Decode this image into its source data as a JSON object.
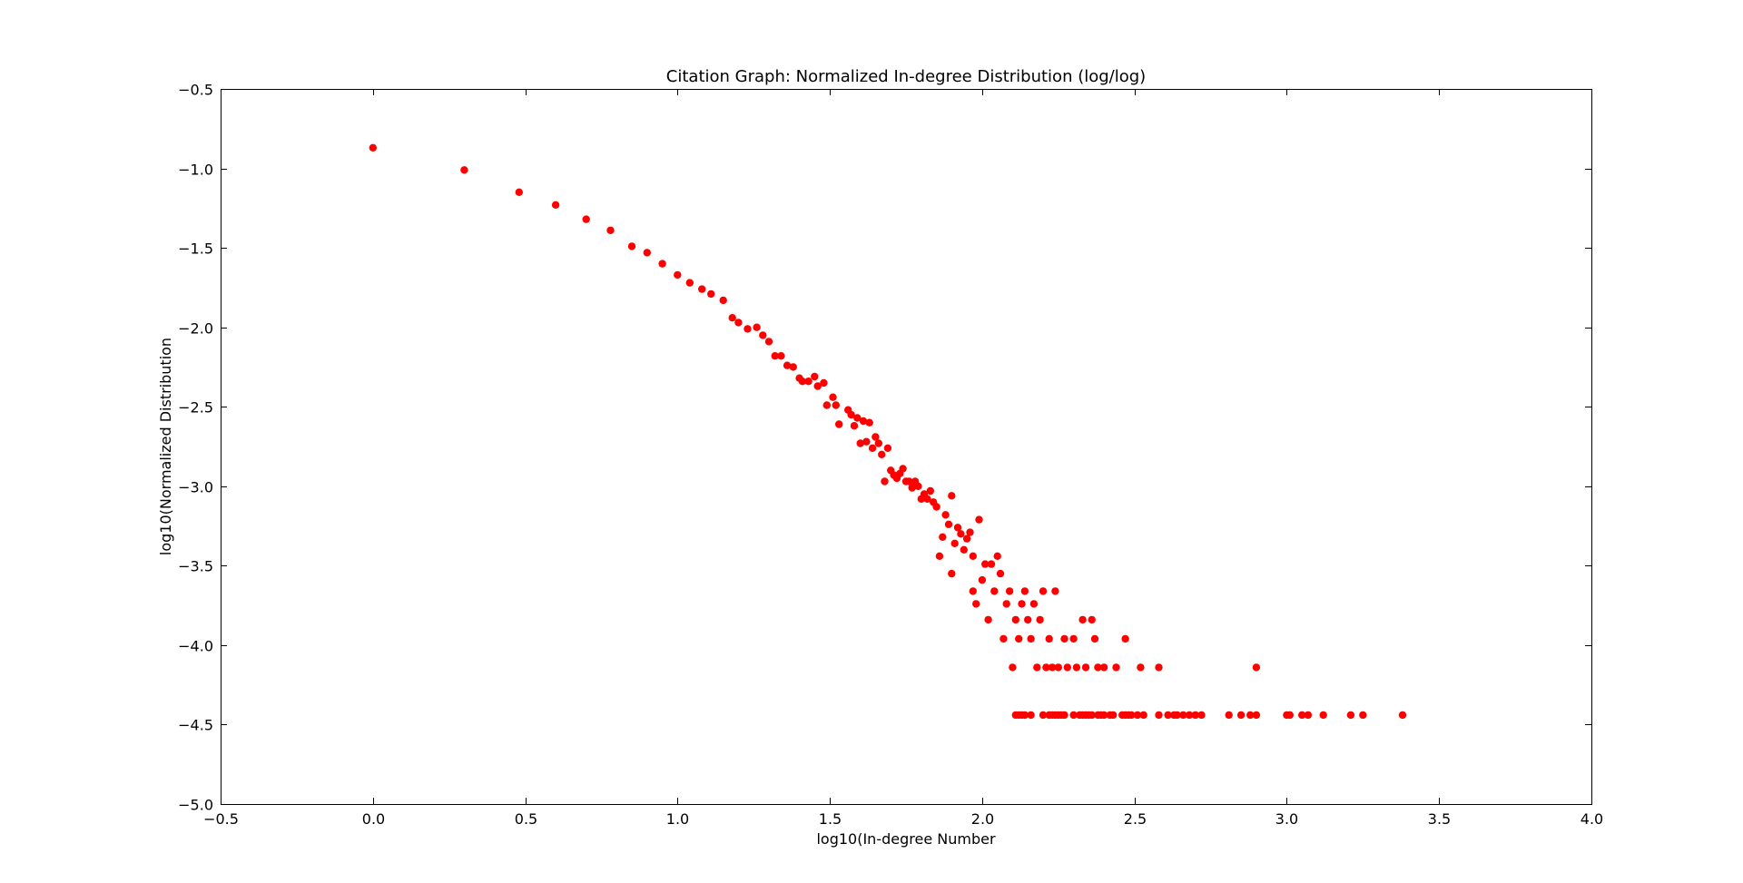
{
  "chart_data": {
    "type": "scatter",
    "title": "Citation Graph: Normalized In-degree Distribution (log/log)",
    "xlabel": "log10(In-degree Number",
    "ylabel": "log10(Normalized Distribution",
    "xlim": [
      -0.5,
      4.0
    ],
    "ylim": [
      -5.0,
      -0.5
    ],
    "xticks": [
      -0.5,
      0.0,
      0.5,
      1.0,
      1.5,
      2.0,
      2.5,
      3.0,
      3.5,
      4.0
    ],
    "xtick_labels": [
      "−0.5",
      "0.0",
      "0.5",
      "1.0",
      "1.5",
      "2.0",
      "2.5",
      "3.0",
      "3.5",
      "4.0"
    ],
    "yticks": [
      -0.5,
      -1.0,
      -1.5,
      -2.0,
      -2.5,
      -3.0,
      -3.5,
      -4.0,
      -4.5,
      -5.0
    ],
    "ytick_labels": [
      "−0.5",
      "−1.0",
      "−1.5",
      "−2.0",
      "−2.5",
      "−3.0",
      "−3.5",
      "−4.0",
      "−4.5",
      "−5.0"
    ],
    "grid": false,
    "marker_color": "#ff0000",
    "points": [
      [
        0.0,
        -0.87
      ],
      [
        0.3,
        -1.01
      ],
      [
        0.48,
        -1.15
      ],
      [
        0.6,
        -1.23
      ],
      [
        0.7,
        -1.32
      ],
      [
        0.78,
        -1.39
      ],
      [
        0.85,
        -1.49
      ],
      [
        0.9,
        -1.53
      ],
      [
        0.95,
        -1.6
      ],
      [
        1.0,
        -1.67
      ],
      [
        1.04,
        -1.72
      ],
      [
        1.08,
        -1.76
      ],
      [
        1.11,
        -1.79
      ],
      [
        1.15,
        -1.83
      ],
      [
        1.18,
        -1.94
      ],
      [
        1.2,
        -1.97
      ],
      [
        1.23,
        -2.01
      ],
      [
        1.26,
        -2.0
      ],
      [
        1.28,
        -2.05
      ],
      [
        1.3,
        -2.09
      ],
      [
        1.32,
        -2.18
      ],
      [
        1.34,
        -2.18
      ],
      [
        1.36,
        -2.24
      ],
      [
        1.38,
        -2.25
      ],
      [
        1.4,
        -2.32
      ],
      [
        1.41,
        -2.34
      ],
      [
        1.43,
        -2.34
      ],
      [
        1.45,
        -2.31
      ],
      [
        1.46,
        -2.37
      ],
      [
        1.48,
        -2.35
      ],
      [
        1.49,
        -2.49
      ],
      [
        1.51,
        -2.44
      ],
      [
        1.52,
        -2.49
      ],
      [
        1.53,
        -2.61
      ],
      [
        1.56,
        -2.52
      ],
      [
        1.57,
        -2.55
      ],
      [
        1.58,
        -2.62
      ],
      [
        1.59,
        -2.57
      ],
      [
        1.6,
        -2.73
      ],
      [
        1.61,
        -2.59
      ],
      [
        1.62,
        -2.72
      ],
      [
        1.63,
        -2.6
      ],
      [
        1.64,
        -2.76
      ],
      [
        1.65,
        -2.69
      ],
      [
        1.66,
        -2.73
      ],
      [
        1.67,
        -2.8
      ],
      [
        1.68,
        -2.97
      ],
      [
        1.69,
        -2.76
      ],
      [
        1.7,
        -2.9
      ],
      [
        1.71,
        -2.93
      ],
      [
        1.72,
        -2.95
      ],
      [
        1.73,
        -2.92
      ],
      [
        1.74,
        -2.89
      ],
      [
        1.75,
        -2.97
      ],
      [
        1.76,
        -2.97
      ],
      [
        1.77,
        -3.01
      ],
      [
        1.78,
        -2.97
      ],
      [
        1.79,
        -3.0
      ],
      [
        1.8,
        -3.08
      ],
      [
        1.81,
        -3.05
      ],
      [
        1.82,
        -3.08
      ],
      [
        1.83,
        -3.03
      ],
      [
        1.84,
        -3.1
      ],
      [
        1.85,
        -3.13
      ],
      [
        1.86,
        -3.44
      ],
      [
        1.87,
        -3.32
      ],
      [
        1.88,
        -3.18
      ],
      [
        1.89,
        -3.24
      ],
      [
        1.9,
        -3.06
      ],
      [
        1.9,
        -3.55
      ],
      [
        1.91,
        -3.36
      ],
      [
        1.92,
        -3.26
      ],
      [
        1.93,
        -3.3
      ],
      [
        1.94,
        -3.4
      ],
      [
        1.95,
        -3.33
      ],
      [
        1.96,
        -3.29
      ],
      [
        1.97,
        -3.44
      ],
      [
        1.97,
        -3.66
      ],
      [
        1.98,
        -3.74
      ],
      [
        1.99,
        -3.21
      ],
      [
        2.0,
        -3.59
      ],
      [
        2.01,
        -3.49
      ],
      [
        2.02,
        -3.84
      ],
      [
        2.03,
        -3.49
      ],
      [
        2.04,
        -3.66
      ],
      [
        2.05,
        -3.44
      ],
      [
        2.06,
        -3.55
      ],
      [
        2.07,
        -3.96
      ],
      [
        2.08,
        -3.74
      ],
      [
        2.09,
        -3.66
      ],
      [
        2.1,
        -4.14
      ],
      [
        2.11,
        -3.84
      ],
      [
        2.12,
        -3.96
      ],
      [
        2.13,
        -3.74
      ],
      [
        2.14,
        -3.66
      ],
      [
        2.15,
        -3.84
      ],
      [
        2.16,
        -3.96
      ],
      [
        2.17,
        -3.74
      ],
      [
        2.18,
        -4.14
      ],
      [
        2.19,
        -3.84
      ],
      [
        2.2,
        -3.66
      ],
      [
        2.21,
        -4.14
      ],
      [
        2.22,
        -3.96
      ],
      [
        2.23,
        -4.14
      ],
      [
        2.24,
        -3.66
      ],
      [
        2.25,
        -4.14
      ],
      [
        2.27,
        -3.96
      ],
      [
        2.28,
        -4.14
      ],
      [
        2.3,
        -3.96
      ],
      [
        2.31,
        -4.14
      ],
      [
        2.33,
        -3.84
      ],
      [
        2.34,
        -4.14
      ],
      [
        2.36,
        -3.84
      ],
      [
        2.37,
        -3.96
      ],
      [
        2.38,
        -4.14
      ],
      [
        2.4,
        -4.14
      ],
      [
        2.44,
        -4.14
      ],
      [
        2.47,
        -3.96
      ],
      [
        2.52,
        -4.14
      ],
      [
        2.58,
        -4.14
      ],
      [
        2.9,
        -4.14
      ],
      [
        2.11,
        -4.44
      ],
      [
        2.12,
        -4.44
      ],
      [
        2.13,
        -4.44
      ],
      [
        2.14,
        -4.44
      ],
      [
        2.16,
        -4.44
      ],
      [
        2.2,
        -4.44
      ],
      [
        2.22,
        -4.44
      ],
      [
        2.23,
        -4.44
      ],
      [
        2.24,
        -4.44
      ],
      [
        2.25,
        -4.44
      ],
      [
        2.26,
        -4.44
      ],
      [
        2.27,
        -4.44
      ],
      [
        2.3,
        -4.44
      ],
      [
        2.32,
        -4.44
      ],
      [
        2.33,
        -4.44
      ],
      [
        2.34,
        -4.44
      ],
      [
        2.35,
        -4.44
      ],
      [
        2.36,
        -4.44
      ],
      [
        2.38,
        -4.44
      ],
      [
        2.39,
        -4.44
      ],
      [
        2.4,
        -4.44
      ],
      [
        2.42,
        -4.44
      ],
      [
        2.43,
        -4.44
      ],
      [
        2.46,
        -4.44
      ],
      [
        2.47,
        -4.44
      ],
      [
        2.48,
        -4.44
      ],
      [
        2.49,
        -4.44
      ],
      [
        2.51,
        -4.44
      ],
      [
        2.53,
        -4.44
      ],
      [
        2.58,
        -4.44
      ],
      [
        2.61,
        -4.44
      ],
      [
        2.63,
        -4.44
      ],
      [
        2.64,
        -4.44
      ],
      [
        2.66,
        -4.44
      ],
      [
        2.68,
        -4.44
      ],
      [
        2.7,
        -4.44
      ],
      [
        2.72,
        -4.44
      ],
      [
        2.81,
        -4.44
      ],
      [
        2.85,
        -4.44
      ],
      [
        2.88,
        -4.44
      ],
      [
        2.9,
        -4.44
      ],
      [
        3.0,
        -4.44
      ],
      [
        3.01,
        -4.44
      ],
      [
        3.05,
        -4.44
      ],
      [
        3.07,
        -4.44
      ],
      [
        3.12,
        -4.44
      ],
      [
        3.21,
        -4.44
      ],
      [
        3.25,
        -4.44
      ],
      [
        3.38,
        -4.44
      ]
    ]
  }
}
